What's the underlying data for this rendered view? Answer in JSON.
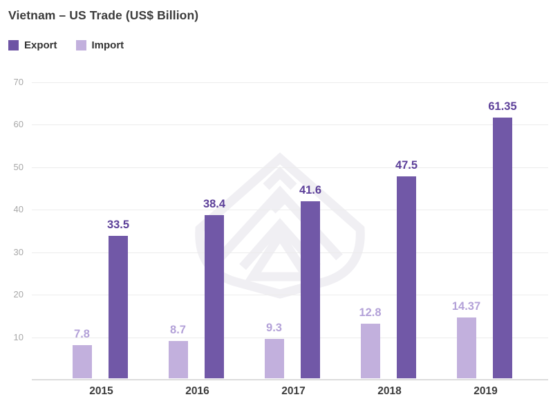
{
  "title": "Vietnam – US Trade (US$ Billion)",
  "legend": [
    {
      "label": "Export",
      "color": "#6e54a4"
    },
    {
      "label": "Import",
      "color": "#c2b0dd"
    }
  ],
  "watermark_icon": "geometric-logo-watermark",
  "chart_data": {
    "type": "bar",
    "title": "Vietnam – US Trade (US$ Billion)",
    "categories": [
      "2015",
      "2016",
      "2017",
      "2018",
      "2019"
    ],
    "series": [
      {
        "name": "Import",
        "values": [
          7.8,
          8.7,
          9.3,
          12.8,
          14.37
        ],
        "color": "#c2b0dd",
        "label_color": "#b3a1d8"
      },
      {
        "name": "Export",
        "values": [
          33.5,
          38.4,
          41.6,
          47.5,
          61.35
        ],
        "color": "#7158a7",
        "label_color": "#5c3f99"
      }
    ],
    "xlabel": "",
    "ylabel": "",
    "ylim": [
      0,
      70
    ],
    "yticks": [
      10,
      20,
      30,
      40,
      50,
      60,
      70
    ],
    "grid": true,
    "legend_position": "top-left",
    "value_labels": true,
    "bar_order_in_group": [
      "Import",
      "Export"
    ]
  }
}
